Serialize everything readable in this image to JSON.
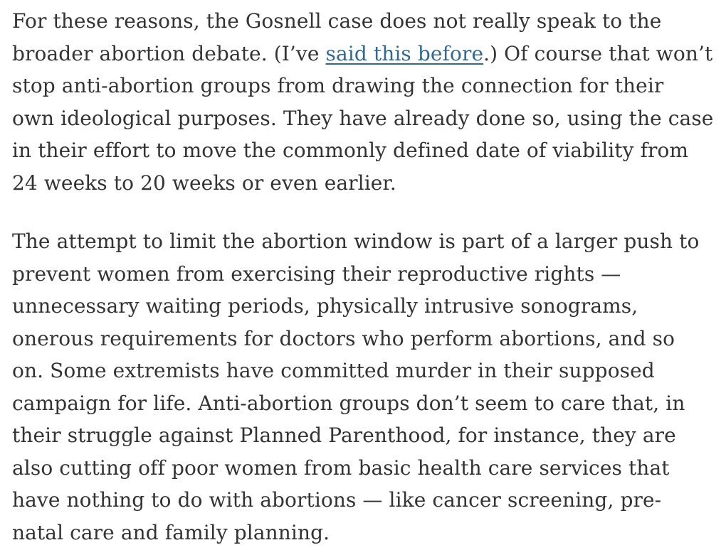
{
  "colors": {
    "text": "#333333",
    "link": "#326891",
    "background": "#ffffff"
  },
  "paragraph1": {
    "l1": "For these reasons, the Gosnell case does not really speak to the",
    "l2_pre": "broader abortion debate. (I’ve ",
    "l2_link": "said this before",
    "l2_post": ".) Of course that won’t",
    "l3": "stop anti-abortion groups from drawing the connection for their",
    "l4": "own ideological purposes. They have already done so, using the case",
    "l5": "in their effort to move the commonly defined date of viability from",
    "l6": "24 weeks to 20 weeks or even earlier."
  },
  "paragraph2": {
    "l1": "The attempt to limit the abortion window is part of a larger push to",
    "l2": "prevent women from exercising their reproductive rights —",
    "l3": "unnecessary waiting periods, physically intrusive sonograms,",
    "l4": "onerous requirements for doctors who perform abortions, and so",
    "l5": "on. Some extremists have committed murder in their supposed",
    "l6": "campaign for life. Anti-abortion groups don’t seem to care that, in",
    "l7": "their struggle against Planned Parenthood, for instance, they are",
    "l8": "also cutting off poor women from basic health care services that",
    "l9": "have nothing to do with abortions — like cancer screening, pre-",
    "l10": "natal care and family planning."
  }
}
